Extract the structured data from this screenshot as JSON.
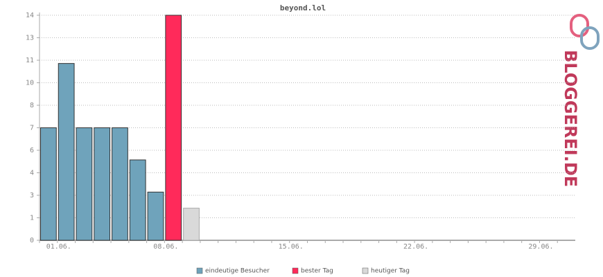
{
  "chart_data": {
    "type": "bar",
    "title": "beyond.lol",
    "categories": [
      null,
      "01.06.",
      null,
      null,
      null,
      null,
      null,
      "08.06.",
      null,
      null,
      null,
      null,
      null,
      null,
      "15.06.",
      null,
      null,
      null,
      null,
      null,
      null,
      "22.06.",
      null,
      null,
      null,
      null,
      null,
      null,
      "29.06.",
      null
    ],
    "series": [
      {
        "name": "eindeutige Besucher",
        "color": "#6fa3bb",
        "values": [
          7,
          11,
          7,
          7,
          7,
          5,
          3,
          null,
          null,
          null,
          null,
          null,
          null,
          null,
          null,
          null,
          null,
          null,
          null,
          null,
          null,
          null,
          null,
          null,
          null,
          null,
          null,
          null,
          null,
          null
        ]
      },
      {
        "name": "bester Tag",
        "color": "#ff2a5a",
        "values": [
          null,
          null,
          null,
          null,
          null,
          null,
          null,
          14,
          null,
          null,
          null,
          null,
          null,
          null,
          null,
          null,
          null,
          null,
          null,
          null,
          null,
          null,
          null,
          null,
          null,
          null,
          null,
          null,
          null,
          null
        ]
      },
      {
        "name": "heutiger Tag",
        "color": "#d9d9d9",
        "values": [
          null,
          null,
          null,
          null,
          null,
          null,
          null,
          null,
          2,
          null,
          null,
          null,
          null,
          null,
          null,
          null,
          null,
          null,
          null,
          null,
          null,
          null,
          null,
          null,
          null,
          null,
          null,
          null,
          null,
          null
        ]
      }
    ],
    "ylim": [
      0,
      14
    ],
    "yticks": [
      0,
      {
        "value": 1.4,
        "label": "1"
      },
      {
        "value": 2.8,
        "label": "3"
      },
      {
        "value": 4.2,
        "label": "4"
      },
      {
        "value": 5.6,
        "label": "6"
      },
      7,
      {
        "value": 8.4,
        "label": "8"
      },
      {
        "value": 9.8,
        "label": "10"
      },
      {
        "value": 11.2,
        "label": "11"
      },
      {
        "value": 12.6,
        "label": "13"
      },
      14
    ],
    "grid": true
  },
  "logo": "BLOGGEREI.DE"
}
